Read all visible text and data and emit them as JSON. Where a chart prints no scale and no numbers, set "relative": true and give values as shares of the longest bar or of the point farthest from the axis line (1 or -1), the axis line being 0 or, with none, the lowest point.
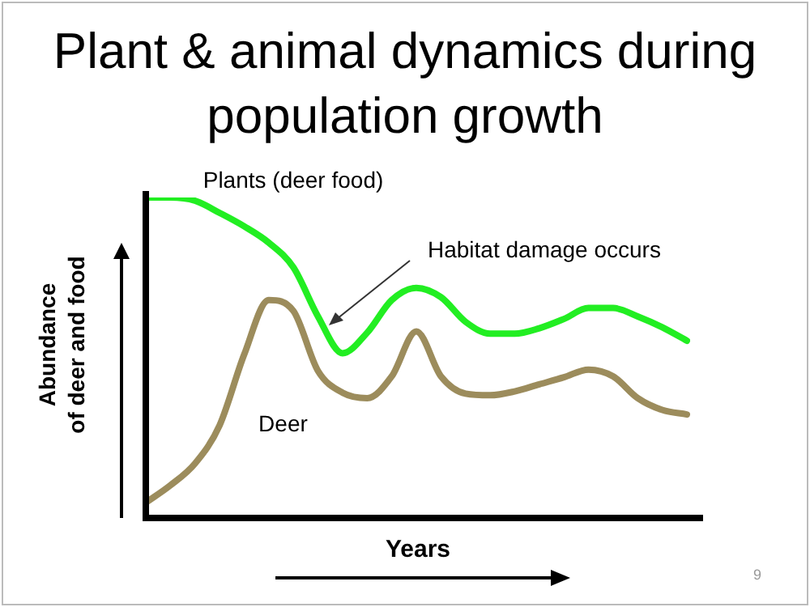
{
  "chart_data": {
    "type": "line",
    "title": "Plant & animal dynamics during population growth",
    "xlabel": "Years",
    "ylabel": "Abundance\nof deer and food",
    "relative": true,
    "legend": false,
    "marker": "none",
    "line_style": "solid",
    "categories": [
      null,
      null,
      null,
      null,
      null,
      null,
      null,
      null,
      null,
      null,
      null,
      null,
      null,
      null,
      null,
      null,
      null,
      null,
      null,
      null,
      null,
      null,
      null
    ],
    "series": [
      {
        "name": "Plants (deer food)",
        "color": "#22ee22",
        "values": [
          1.0,
          1.0,
          0.99,
          0.952,
          0.91,
          0.859,
          0.782,
          0.629,
          0.514,
          0.578,
          0.68,
          0.718,
          0.689,
          0.612,
          0.575,
          0.575,
          0.592,
          0.621,
          0.655,
          0.655,
          0.629,
          0.595,
          0.553
        ]
      },
      {
        "name": "Deer",
        "color": "#9c8c5c",
        "values": [
          0.048,
          0.102,
          0.17,
          0.289,
          0.51,
          0.68,
          0.646,
          0.459,
          0.391,
          0.374,
          0.442,
          0.582,
          0.442,
          0.388,
          0.383,
          0.395,
          0.417,
          0.439,
          0.463,
          0.442,
          0.374,
          0.337,
          0.323
        ]
      }
    ],
    "annotations": [
      "Habitat damage occurs",
      "9"
    ]
  }
}
